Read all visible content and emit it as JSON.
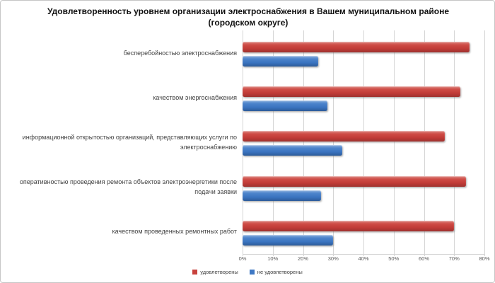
{
  "title": "Удовлетворенность уровнем организации электроснабжения в Вашем муниципальном районе (городском округе)",
  "chart_data": {
    "type": "bar",
    "orientation": "horizontal",
    "title": "Удовлетворенность уровнем организации электроснабжения в Вашем муниципальном районе (городском округе)",
    "categories": [
      "бесперебойностью  электроснабжения",
      "качеством энергоснабжения",
      "информационной открытостью организаций, представляющих услуги по электроснабжению",
      "оперативностью проведения ремонта объектов электроэнергетики после подачи заявки",
      "качеством проведенных ремонтных работ"
    ],
    "series": [
      {
        "name": "удовлетворены",
        "color": "#c8423d",
        "values": [
          75,
          72,
          67,
          74,
          70
        ]
      },
      {
        "name": "не удовлетворены",
        "color": "#3e78c4",
        "values": [
          25,
          28,
          33,
          26,
          30
        ]
      }
    ],
    "xlim": [
      0,
      80
    ],
    "x_ticks": [
      "0%",
      "10%",
      "20%",
      "30%",
      "40%",
      "50%",
      "60%",
      "70%",
      "80%"
    ],
    "xlabel": "",
    "ylabel": "",
    "grid": true,
    "legend_position": "bottom"
  },
  "colors": {
    "satisfied": "#c8423d",
    "not_satisfied": "#3e78c4",
    "gridline": "#d5d5d5",
    "text_labels": "#3f3f3f",
    "text_ticks": "#595959"
  }
}
